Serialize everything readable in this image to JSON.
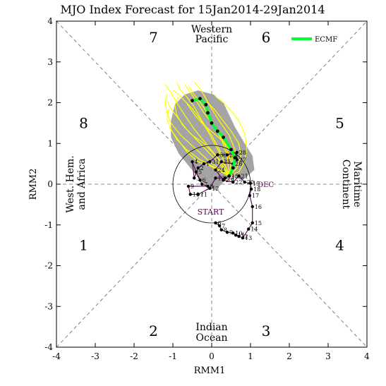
{
  "chart_data": {
    "type": "line",
    "title": "MJO Index Forecast for 15Jan2014-29Jan2014",
    "xlabel": "RMM1",
    "ylabel": "RMM2",
    "xlim": [
      -4,
      4
    ],
    "ylim": [
      -4,
      4
    ],
    "xticks": [
      "-4",
      "-3",
      "-2",
      "-1",
      "0",
      "1",
      "2",
      "3",
      "4"
    ],
    "yticks": [
      "-4",
      "-3",
      "-2",
      "-1",
      "0",
      "1",
      "2",
      "3",
      "4"
    ],
    "phases": [
      {
        "label": "1",
        "x": -3.3,
        "y": -1.5
      },
      {
        "label": "2",
        "x": -1.5,
        "y": -3.6
      },
      {
        "label": "3",
        "x": 1.4,
        "y": -3.6
      },
      {
        "label": "4",
        "x": 3.3,
        "y": -1.5
      },
      {
        "label": "5",
        "x": 3.3,
        "y": 1.5
      },
      {
        "label": "6",
        "x": 1.4,
        "y": 3.6
      },
      {
        "label": "7",
        "x": -1.5,
        "y": 3.6
      },
      {
        "label": "8",
        "x": -3.3,
        "y": 1.5
      }
    ],
    "regions": {
      "top": [
        "Western",
        "Pacific"
      ],
      "bottom": [
        "Indian",
        "Ocean"
      ],
      "left": [
        "West. Hem.",
        "and Africa"
      ],
      "right": [
        "Maritime",
        "Continent"
      ]
    },
    "legend": {
      "label": "ECMF",
      "color": "#00ff33",
      "position": "top-right"
    },
    "annotations": {
      "start": "START",
      "month": "DEC"
    },
    "observed": {
      "color": "#5a0050",
      "points": [
        {
          "day": "6",
          "x": 0.1,
          "y": -0.95
        },
        {
          "day": "7",
          "x": 0.2,
          "y": -1.02
        },
        {
          "day": "8",
          "x": 0.25,
          "y": -1.12
        },
        {
          "day": "9",
          "x": 0.4,
          "y": -1.18
        },
        {
          "day": "10",
          "x": 0.55,
          "y": -1.2
        },
        {
          "day": "11",
          "x": 0.62,
          "y": -1.25
        },
        {
          "day": "12",
          "x": 0.7,
          "y": -1.28
        },
        {
          "day": "13",
          "x": 0.8,
          "y": -1.32
        },
        {
          "day": "14",
          "x": 0.95,
          "y": -1.1
        },
        {
          "day": "15",
          "x": 1.05,
          "y": -0.95
        },
        {
          "day": "16",
          "x": 1.05,
          "y": -0.55
        },
        {
          "day": "17",
          "x": 0.98,
          "y": -0.28
        },
        {
          "day": "18",
          "x": 1.02,
          "y": -0.12
        },
        {
          "day": "19",
          "x": 1.0,
          "y": 0.02
        },
        {
          "day": "20",
          "x": 0.85,
          "y": 0.05
        },
        {
          "day": "21",
          "x": 0.7,
          "y": 0.2
        },
        {
          "day": "22",
          "x": 0.55,
          "y": 0.05
        },
        {
          "day": "23",
          "x": 0.3,
          "y": 0.1
        },
        {
          "day": "24",
          "x": 0.1,
          "y": 0.35
        },
        {
          "day": "25",
          "x": 0.25,
          "y": 0.55
        },
        {
          "day": "26",
          "x": 0.55,
          "y": 0.5
        },
        {
          "day": "27",
          "x": 0.65,
          "y": 0.6
        },
        {
          "day": "28",
          "x": 0.65,
          "y": 0.78
        },
        {
          "day": "29",
          "x": 0.4,
          "y": 0.72
        },
        {
          "day": "30",
          "x": 0.15,
          "y": 0.72
        },
        {
          "day": "31",
          "x": -0.05,
          "y": 0.55
        },
        {
          "day": "1",
          "x": -0.2,
          "y": 0.5
        },
        {
          "day": "2",
          "x": -0.35,
          "y": 0.4
        },
        {
          "day": "3",
          "x": -0.45,
          "y": 0.15
        },
        {
          "day": "4",
          "x": -0.5,
          "y": 0.55
        },
        {
          "day": "5",
          "x": -0.4,
          "y": 0.3
        },
        {
          "day": "6",
          "x": -0.3,
          "y": 0.1
        },
        {
          "day": "7",
          "x": -0.25,
          "y": 0.0
        },
        {
          "day": "8",
          "x": -0.1,
          "y": -0.05
        },
        {
          "day": "9",
          "x": -0.6,
          "y": -0.05
        },
        {
          "day": "10",
          "x": -0.55,
          "y": -0.25
        },
        {
          "day": "11",
          "x": -0.35,
          "y": -0.25
        },
        {
          "day": "12",
          "x": -0.05,
          "y": -0.1
        },
        {
          "day": "13",
          "x": 0.1,
          "y": 0.15
        },
        {
          "day": "14",
          "x": 0.35,
          "y": 0.15
        },
        {
          "day": "15",
          "x": 0.45,
          "y": 0.2
        }
      ]
    },
    "ecmf_mean": {
      "color": "#00ff33",
      "points": [
        {
          "x": 0.45,
          "y": 0.2
        },
        {
          "x": 0.55,
          "y": 0.4
        },
        {
          "x": 0.6,
          "y": 0.65
        },
        {
          "x": 0.5,
          "y": 0.85
        },
        {
          "x": 0.3,
          "y": 1.15
        },
        {
          "x": 0.15,
          "y": 1.3
        },
        {
          "x": 0.0,
          "y": 1.5
        },
        {
          "x": -0.1,
          "y": 1.75
        },
        {
          "x": -0.15,
          "y": 1.95
        },
        {
          "x": -0.3,
          "y": 2.1
        },
        {
          "x": -0.5,
          "y": 2.05
        }
      ]
    },
    "ensemble": {
      "color": "#ffff00",
      "members": [
        [
          [
            0.45,
            0.2
          ],
          [
            0.3,
            0.6
          ],
          [
            0.1,
            0.95
          ],
          [
            -0.1,
            1.3
          ],
          [
            -0.3,
            1.6
          ],
          [
            -0.5,
            1.85
          ],
          [
            -0.7,
            2.05
          ],
          [
            -0.85,
            2.2
          ],
          [
            -1.0,
            2.3
          ]
        ],
        [
          [
            0.45,
            0.2
          ],
          [
            0.2,
            0.5
          ],
          [
            -0.1,
            0.8
          ],
          [
            -0.4,
            1.1
          ],
          [
            -0.65,
            1.35
          ],
          [
            -0.85,
            1.6
          ],
          [
            -1.05,
            1.85
          ],
          [
            -1.15,
            2.05
          ]
        ],
        [
          [
            0.45,
            0.2
          ],
          [
            0.5,
            0.55
          ],
          [
            0.35,
            0.95
          ],
          [
            0.15,
            1.3
          ],
          [
            -0.05,
            1.65
          ],
          [
            -0.25,
            1.95
          ],
          [
            -0.45,
            2.2
          ],
          [
            -0.6,
            2.4
          ]
        ],
        [
          [
            0.45,
            0.2
          ],
          [
            0.6,
            0.5
          ],
          [
            0.6,
            0.85
          ],
          [
            0.45,
            1.2
          ],
          [
            0.2,
            1.55
          ],
          [
            0.0,
            1.85
          ],
          [
            -0.15,
            2.1
          ],
          [
            -0.3,
            2.35
          ],
          [
            -0.45,
            2.5
          ]
        ],
        [
          [
            0.45,
            0.2
          ],
          [
            0.1,
            0.4
          ],
          [
            -0.3,
            0.6
          ],
          [
            -0.65,
            0.85
          ],
          [
            -0.9,
            1.1
          ],
          [
            -1.05,
            1.35
          ],
          [
            -1.15,
            1.6
          ],
          [
            -1.1,
            1.85
          ]
        ],
        [
          [
            0.45,
            0.2
          ],
          [
            0.35,
            0.45
          ],
          [
            0.1,
            0.7
          ],
          [
            -0.2,
            1.0
          ],
          [
            -0.5,
            1.2
          ],
          [
            -0.75,
            1.45
          ],
          [
            -0.9,
            1.7
          ],
          [
            -0.95,
            1.95
          ],
          [
            -0.85,
            2.15
          ]
        ],
        [
          [
            0.45,
            0.2
          ],
          [
            0.55,
            0.45
          ],
          [
            0.5,
            0.8
          ],
          [
            0.3,
            1.05
          ],
          [
            0.05,
            1.25
          ],
          [
            -0.2,
            1.45
          ],
          [
            -0.4,
            1.65
          ],
          [
            -0.55,
            1.85
          ],
          [
            -0.65,
            2.0
          ]
        ],
        [
          [
            0.45,
            0.2
          ],
          [
            0.25,
            0.3
          ],
          [
            -0.05,
            0.45
          ],
          [
            -0.35,
            0.55
          ],
          [
            -0.6,
            0.75
          ],
          [
            -0.8,
            1.0
          ],
          [
            -0.95,
            1.2
          ],
          [
            -1.1,
            1.4
          ]
        ],
        [
          [
            0.45,
            0.2
          ],
          [
            0.65,
            0.4
          ],
          [
            0.75,
            0.7
          ],
          [
            0.7,
            1.0
          ],
          [
            0.5,
            1.3
          ],
          [
            0.3,
            1.55
          ],
          [
            0.1,
            1.8
          ],
          [
            -0.1,
            2.0
          ],
          [
            -0.2,
            2.2
          ]
        ],
        [
          [
            0.45,
            0.2
          ],
          [
            0.4,
            0.7
          ],
          [
            0.25,
            1.1
          ],
          [
            0.05,
            1.45
          ],
          [
            -0.2,
            1.75
          ],
          [
            -0.4,
            2.05
          ],
          [
            -0.55,
            2.25
          ],
          [
            -0.7,
            2.45
          ]
        ],
        [
          [
            0.45,
            0.2
          ],
          [
            0.15,
            0.65
          ],
          [
            -0.15,
            1.0
          ],
          [
            -0.45,
            1.35
          ],
          [
            -0.7,
            1.7
          ],
          [
            -0.9,
            2.0
          ],
          [
            -1.05,
            2.25
          ],
          [
            -1.2,
            2.45
          ]
        ],
        [
          [
            0.45,
            0.2
          ],
          [
            0.7,
            0.3
          ],
          [
            0.85,
            0.55
          ],
          [
            0.9,
            0.9
          ],
          [
            0.85,
            1.25
          ],
          [
            0.7,
            1.55
          ],
          [
            0.5,
            1.8
          ],
          [
            0.3,
            2.0
          ],
          [
            0.1,
            2.15
          ]
        ],
        [
          [
            0.45,
            0.2
          ],
          [
            0.2,
            0.85
          ],
          [
            0.0,
            1.2
          ],
          [
            -0.25,
            1.55
          ],
          [
            -0.45,
            1.9
          ],
          [
            -0.65,
            2.15
          ],
          [
            -0.8,
            2.3
          ],
          [
            -0.9,
            2.5
          ]
        ],
        [
          [
            0.45,
            0.2
          ],
          [
            -0.05,
            0.55
          ],
          [
            -0.45,
            0.9
          ],
          [
            -0.8,
            1.2
          ],
          [
            -1.05,
            1.5
          ],
          [
            -1.15,
            1.75
          ],
          [
            -1.2,
            2.0
          ],
          [
            -1.15,
            2.2
          ]
        ]
      ]
    },
    "spread_polygon": [
      [
        0.45,
        0.2
      ],
      [
        0.8,
        0.1
      ],
      [
        1.1,
        0.35
      ],
      [
        1.05,
        0.7
      ],
      [
        0.85,
        1.0
      ],
      [
        0.6,
        1.4
      ],
      [
        0.3,
        2.0
      ],
      [
        0.05,
        2.2
      ],
      [
        -0.35,
        2.3
      ],
      [
        -0.7,
        2.2
      ],
      [
        -0.95,
        1.95
      ],
      [
        -1.05,
        1.55
      ],
      [
        -1.05,
        1.15
      ],
      [
        -0.85,
        0.75
      ],
      [
        -0.55,
        0.4
      ],
      [
        -0.25,
        0.05
      ],
      [
        0.1,
        -0.15
      ]
    ]
  }
}
